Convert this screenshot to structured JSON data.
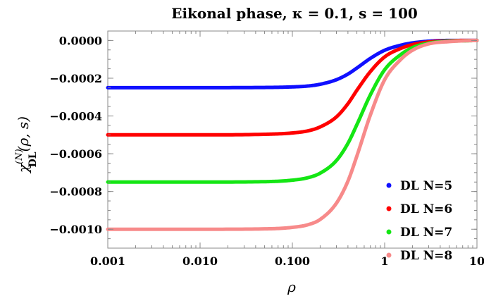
{
  "chart_data": {
    "type": "line",
    "title": "Eikonal phase, κ = 0.1, s = 100",
    "xlabel": "ρ",
    "ylabel": "χ(N)DL(ρ, s)",
    "ylabel_parts": {
      "base": "χ",
      "sup": "(N)",
      "sub": "DL",
      "args": "(ρ, s)"
    },
    "xscale": "log",
    "xlim": [
      0.001,
      10
    ],
    "ylim": [
      -0.0011,
      5e-05
    ],
    "x_ticks": [
      {
        "value": 0.001,
        "label": "0.001"
      },
      {
        "value": 0.01,
        "label": "0.010"
      },
      {
        "value": 0.1,
        "label": "0.100"
      },
      {
        "value": 1,
        "label": "1"
      },
      {
        "value": 10,
        "label": "10"
      }
    ],
    "y_ticks": [
      {
        "value": 0,
        "label": "0.0000"
      },
      {
        "value": -0.0002,
        "label": "-0.0002"
      },
      {
        "value": -0.0004,
        "label": "-0.0004"
      },
      {
        "value": -0.0006,
        "label": "-0.0006"
      },
      {
        "value": -0.0008,
        "label": "-0.0008"
      },
      {
        "value": -0.001,
        "label": "-0.0010"
      }
    ],
    "grid": false,
    "legend_position": "right",
    "series": [
      {
        "name": "DL N=5",
        "color": "#1010ff",
        "x": [
          0.001,
          0.01,
          0.05,
          0.1,
          0.15,
          0.2,
          0.3,
          0.4,
          0.5,
          0.7,
          1,
          1.5,
          2,
          3,
          5,
          7,
          10
        ],
        "y": [
          -0.00025,
          -0.00025,
          -0.000249,
          -0.000246,
          -0.000241,
          -0.000232,
          -0.000208,
          -0.000178,
          -0.000146,
          -9.5e-05,
          -5.2e-05,
          -2.5e-05,
          -1.3e-05,
          -4e-06,
          0,
          0,
          0
        ]
      },
      {
        "name": "DL N=6",
        "color": "#ff0000",
        "x": [
          0.001,
          0.01,
          0.05,
          0.1,
          0.15,
          0.2,
          0.3,
          0.4,
          0.5,
          0.7,
          1,
          1.5,
          2,
          3,
          5,
          7,
          10
        ],
        "y": [
          -0.0005,
          -0.0005,
          -0.000497,
          -0.00049,
          -0.000478,
          -0.000458,
          -0.000405,
          -0.000335,
          -0.000264,
          -0.000165,
          -8.7e-05,
          -4.2e-05,
          -2.2e-05,
          -8e-06,
          -2e-06,
          0,
          0
        ]
      },
      {
        "name": "DL N=7",
        "color": "#14e614",
        "x": [
          0.001,
          0.01,
          0.05,
          0.1,
          0.15,
          0.2,
          0.3,
          0.4,
          0.5,
          0.7,
          1,
          1.5,
          2,
          3,
          5,
          7,
          10
        ],
        "y": [
          -0.00075,
          -0.00075,
          -0.000748,
          -0.00074,
          -0.000726,
          -0.000703,
          -0.000636,
          -0.000545,
          -0.000446,
          -0.000288,
          -0.000155,
          -7.4e-05,
          -3.8e-05,
          -1.4e-05,
          -4e-06,
          -2e-06,
          0
        ]
      },
      {
        "name": "DL N=8",
        "color": "#f78a8a",
        "x": [
          0.001,
          0.01,
          0.05,
          0.1,
          0.15,
          0.2,
          0.3,
          0.4,
          0.5,
          0.7,
          1,
          1.5,
          2,
          3,
          5,
          7,
          10
        ],
        "y": [
          -0.001,
          -0.001,
          -0.000998,
          -0.00099,
          -0.000975,
          -0.000948,
          -0.000862,
          -0.000745,
          -0.000612,
          -0.000395,
          -0.000208,
          -0.0001,
          -5.2e-05,
          -1.8e-05,
          -6e-06,
          -2e-06,
          0
        ]
      }
    ]
  }
}
